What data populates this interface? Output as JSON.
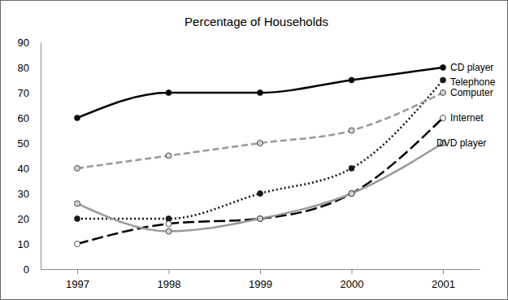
{
  "chart_data": {
    "type": "line",
    "title": "Percentage of Households",
    "categories": [
      "1997",
      "1998",
      "1999",
      "2000",
      "2001"
    ],
    "series": [
      {
        "name": "CD player",
        "color": "#000000",
        "line_style": "solid",
        "marker": "circle",
        "values": [
          60,
          70,
          70,
          75,
          80
        ]
      },
      {
        "name": "Telephone",
        "color": "#111111",
        "line_style": "dotted",
        "marker": "circle",
        "values": [
          20,
          20,
          30,
          40,
          75
        ]
      },
      {
        "name": "Computer",
        "color": "#999999",
        "line_style": "dashed",
        "marker": "circle",
        "values": [
          40,
          45,
          50,
          55,
          70
        ]
      },
      {
        "name": "Internet",
        "color": "#000000",
        "line_style": "long-dash",
        "marker": "circle",
        "values": [
          10,
          18,
          20,
          30,
          60
        ]
      },
      {
        "name": "DVD player",
        "color": "#999999",
        "line_style": "solid",
        "marker": "circle",
        "values": [
          26,
          15,
          20,
          30,
          50
        ]
      }
    ],
    "ylim": [
      0,
      90
    ],
    "yticks": [
      0,
      10,
      20,
      30,
      40,
      50,
      60,
      70,
      80,
      90
    ],
    "grid": false
  }
}
